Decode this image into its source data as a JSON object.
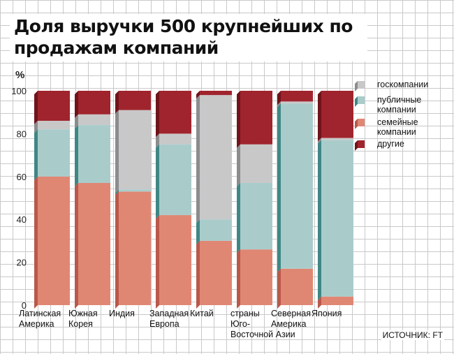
{
  "chart_data": {
    "type": "bar",
    "stacked": true,
    "title": "Доля выручки 500 крупнейших по продажам компаний",
    "ylabel": "%",
    "ylim": [
      0,
      100
    ],
    "yticks": [
      "0",
      "20",
      "40",
      "60",
      "80",
      "100"
    ],
    "categories": [
      [
        "Латинская",
        "Америка"
      ],
      [
        "Южная",
        "Корея"
      ],
      [
        "Индия"
      ],
      [
        "Западная",
        "Европа"
      ],
      [
        "Китай"
      ],
      [
        "страны",
        "Юго-",
        "Восточной Азии"
      ],
      [
        "Северная",
        "Америка"
      ],
      [
        "Япония"
      ]
    ],
    "series": [
      {
        "name": "семейные компании",
        "color": "#e08774",
        "values": [
          60,
          57,
          53,
          42,
          30,
          26,
          17,
          4
        ]
      },
      {
        "name": "публичные компании",
        "color": "#a9cccb",
        "values": [
          22,
          27,
          1,
          33,
          10,
          31,
          77,
          73
        ]
      },
      {
        "name": "госкомпании",
        "color": "#c8c8c9",
        "values": [
          4,
          5,
          37,
          5,
          58,
          18,
          1,
          1
        ]
      },
      {
        "name": "другие",
        "color": "#a0242d",
        "values": [
          14,
          11,
          9,
          20,
          2,
          25,
          5,
          22
        ]
      }
    ],
    "side_colors": [
      "#b9584b",
      "#3f8785",
      "#8c8c8e",
      "#6f141a"
    ],
    "legend": {
      "position": "top-right",
      "items": [
        "госкомпании",
        [
          "публичные",
          "компании"
        ],
        [
          "семейные",
          "компании"
        ],
        "другие"
      ]
    }
  },
  "source": "ИСТОЧНИК: FT"
}
